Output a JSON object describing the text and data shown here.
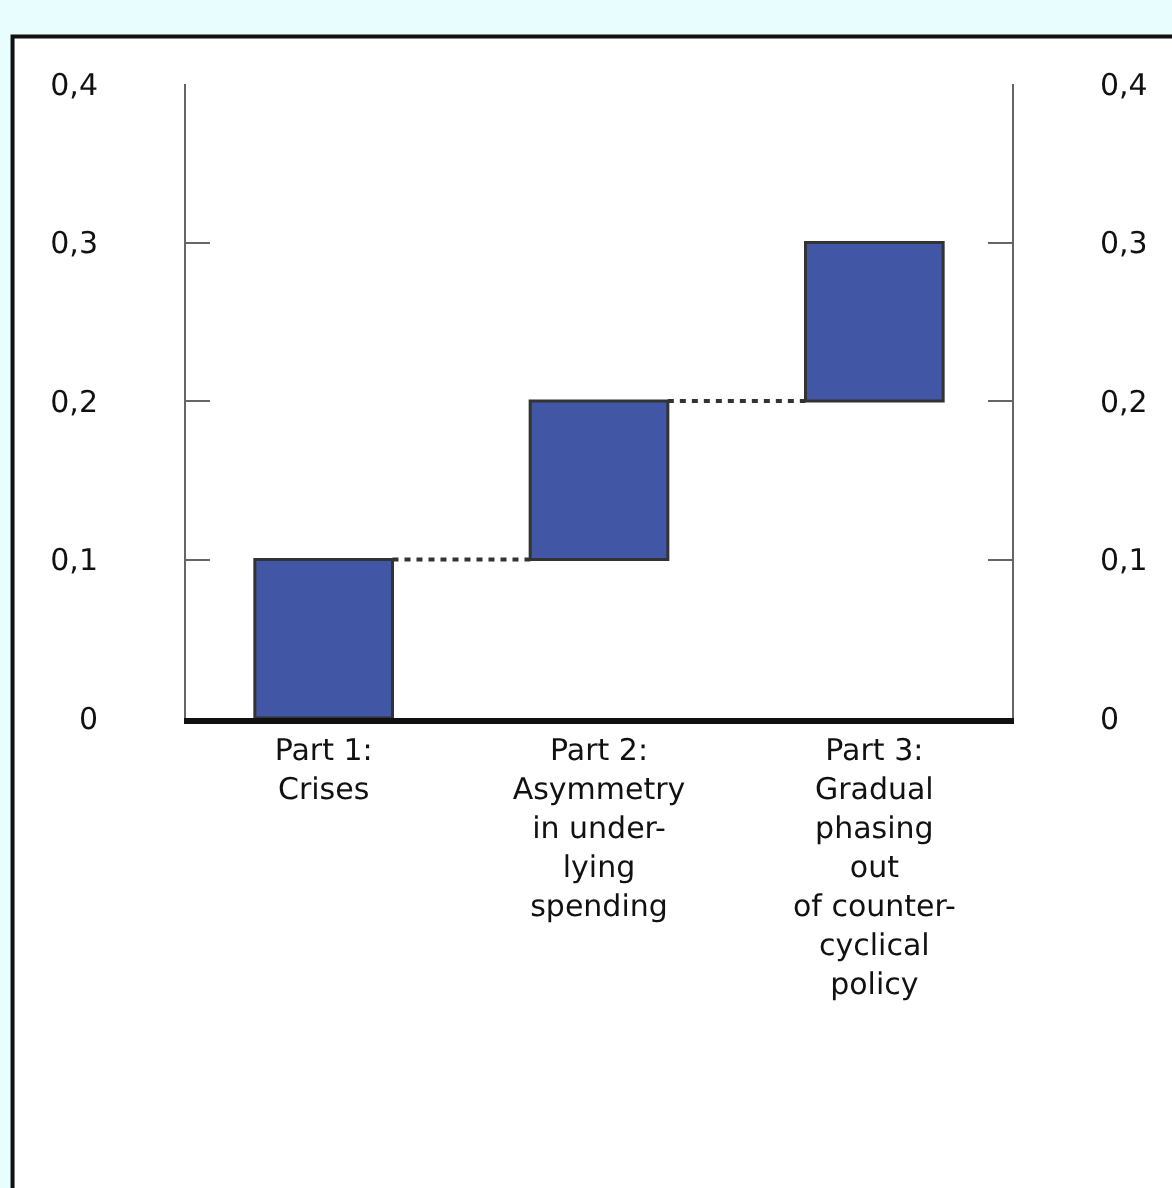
{
  "chart_data": {
    "type": "bar",
    "categories": [
      "Part 1:\nCrises",
      "Part 2:\nAsymmetry\nin under-\nlying\nspending",
      "Part 3:\nGradual\nphasing\nout\nof counter-\ncyclical\npolicy"
    ],
    "series": [
      {
        "color": "#4256a6",
        "values": [
          0.1,
          0.1,
          0.1
        ],
        "base": [
          0,
          0.1,
          0.2
        ]
      }
    ],
    "ref_lines": [
      {
        "axis": "y",
        "value": 0.1,
        "color": "#333333",
        "line_style": "dotted"
      },
      {
        "axis": "y",
        "value": 0.2,
        "color": "#333333",
        "line_style": "dotted"
      }
    ],
    "ylim": [
      0,
      0.4
    ],
    "yticks": [
      0,
      {
        "value": 0.1,
        "label": "0,1"
      },
      {
        "value": 0.2,
        "label": "0,2"
      },
      {
        "value": 0.3,
        "label": "0,3"
      },
      {
        "value": 0.4,
        "label": "0,4"
      }
    ],
    "y2lim": [
      0,
      0.4
    ],
    "y2ticks": [
      0,
      {
        "value": 0.1,
        "label": "0,1"
      },
      {
        "value": 0.2,
        "label": "0,2"
      },
      {
        "value": 0.3,
        "label": "0,3"
      },
      {
        "value": 0.4,
        "label": "0,4"
      }
    ],
    "legend": false
  }
}
